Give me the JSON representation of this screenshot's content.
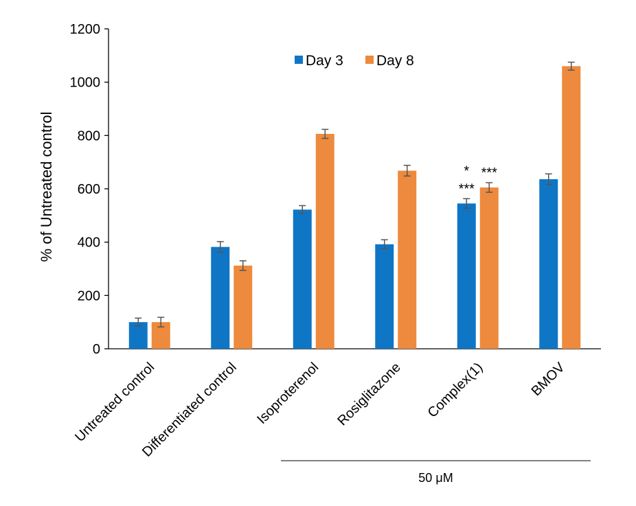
{
  "chart_data": {
    "type": "bar",
    "title": "",
    "xlabel": "",
    "ylabel": "% of Untreated control",
    "ylim": [
      0,
      1200
    ],
    "yticks": [
      0,
      200,
      400,
      600,
      800,
      1000,
      1200
    ],
    "categories": [
      "Untreated control",
      "Differentiated control",
      "Isoproterenol",
      "Rosiglitazone",
      "Complex(1)",
      "BMOV"
    ],
    "series": [
      {
        "name": "Day 3",
        "color": "#0f76c6",
        "values": [
          100,
          382,
          522,
          392,
          545,
          636
        ],
        "errors": [
          15,
          20,
          15,
          17,
          18,
          20
        ]
      },
      {
        "name": "Day 8",
        "color": "#ed8a3d",
        "values": [
          100,
          312,
          806,
          668,
          605,
          1060
        ],
        "errors": [
          18,
          18,
          17,
          20,
          18,
          15
        ]
      }
    ],
    "annotations": [
      {
        "category": "Complex(1)",
        "series": "Day 3",
        "lines": [
          "*",
          "***"
        ]
      },
      {
        "category": "Complex(1)",
        "series": "Day 8",
        "lines": [
          "***"
        ]
      }
    ],
    "group_bracket": {
      "label": "50 μM",
      "from_category": "Isoproterenol",
      "to_category": "BMOV"
    },
    "legend_position": "top-center",
    "grid": false
  }
}
